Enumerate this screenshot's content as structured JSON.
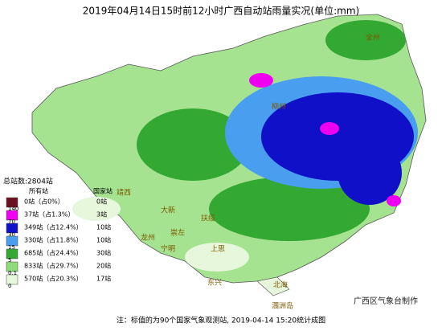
{
  "header": {
    "title": "2019年04月14日15时前12小时广西自动站雨量实况(单位:mm)"
  },
  "legend": {
    "total": "总站数:2804站",
    "col_all": "所有站",
    "col_national": "国家站",
    "rows": [
      {
        "color": "#6b1022",
        "all": "0站（占0%）",
        "national": "0站"
      },
      {
        "color": "#f000f0",
        "all": "37站（占1.3%）",
        "national": "3站"
      },
      {
        "color": "#1010c8",
        "all": "349站（占12.4%）",
        "national": "10站"
      },
      {
        "color": "#4a9ef0",
        "all": "330站（占11.8%）",
        "national": "10站"
      },
      {
        "color": "#33a833",
        "all": "685站（占24.4%）",
        "national": "30站"
      },
      {
        "color": "#8edb7a",
        "all": "833站（占29.7%）",
        "national": "20站"
      },
      {
        "color": "#e6f7dc",
        "all": "570站（占20.3%）",
        "national": "17站"
      }
    ],
    "thresholds": [
      "140",
      "70",
      "30",
      "15",
      "5",
      "0.1",
      "0"
    ]
  },
  "cities": [
    "全州",
    "柳州",
    "靖西",
    "大新",
    "崇左",
    "扶绥",
    "龙州",
    "宁明",
    "上思",
    "东兴",
    "北海",
    "涠洲岛"
  ],
  "footer": {
    "note": "注：标值的为90个国家气象观测站, 2019-04-14 15:20统计成图",
    "credit": "广西区气象台制作"
  }
}
